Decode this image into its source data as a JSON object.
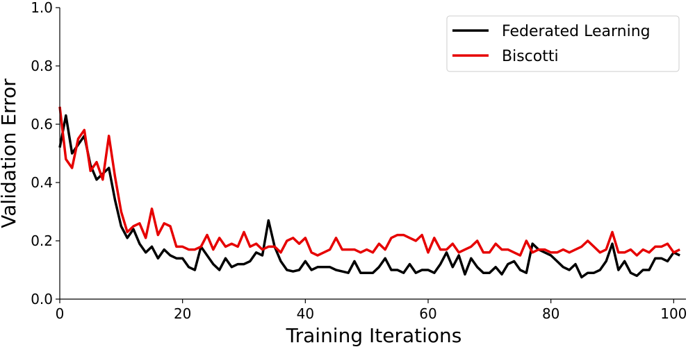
{
  "chart_data": {
    "type": "line",
    "title": "",
    "xlabel": "Training Iterations",
    "ylabel": "Validation Error",
    "xlim": [
      0,
      102
    ],
    "ylim": [
      0.0,
      1.0
    ],
    "xticks": [
      0,
      20,
      40,
      60,
      80,
      100
    ],
    "yticks": [
      0.0,
      0.2,
      0.4,
      0.6,
      0.8,
      1.0
    ],
    "xtick_labels": [
      "0",
      "20",
      "40",
      "60",
      "80",
      "100"
    ],
    "ytick_labels": [
      "0.0",
      "0.2",
      "0.4",
      "0.6",
      "0.8",
      "1.0"
    ],
    "grid": false,
    "legend_position": "top-right",
    "x": [
      0,
      1,
      2,
      3,
      4,
      5,
      6,
      7,
      8,
      9,
      10,
      11,
      12,
      13,
      14,
      15,
      16,
      17,
      18,
      19,
      20,
      21,
      22,
      23,
      24,
      25,
      26,
      27,
      28,
      29,
      30,
      31,
      32,
      33,
      34,
      35,
      36,
      37,
      38,
      39,
      40,
      41,
      42,
      43,
      44,
      45,
      46,
      47,
      48,
      49,
      50,
      51,
      52,
      53,
      54,
      55,
      56,
      57,
      58,
      59,
      60,
      61,
      62,
      63,
      64,
      65,
      66,
      67,
      68,
      69,
      70,
      71,
      72,
      73,
      74,
      75,
      76,
      77,
      78,
      79,
      80,
      81,
      82,
      83,
      84,
      85,
      86,
      87,
      88,
      89,
      90,
      91,
      92,
      93,
      94,
      95,
      96,
      97,
      98,
      99,
      100,
      101
    ],
    "series": [
      {
        "name": "Federated Learning",
        "color": "#000000",
        "values": [
          0.52,
          0.63,
          0.5,
          0.53,
          0.56,
          0.46,
          0.41,
          0.43,
          0.45,
          0.34,
          0.25,
          0.21,
          0.24,
          0.19,
          0.16,
          0.18,
          0.14,
          0.17,
          0.15,
          0.14,
          0.14,
          0.11,
          0.1,
          0.18,
          0.15,
          0.12,
          0.1,
          0.14,
          0.11,
          0.12,
          0.12,
          0.13,
          0.16,
          0.15,
          0.27,
          0.18,
          0.13,
          0.1,
          0.095,
          0.1,
          0.13,
          0.1,
          0.11,
          0.11,
          0.11,
          0.1,
          0.095,
          0.09,
          0.13,
          0.09,
          0.09,
          0.09,
          0.11,
          0.14,
          0.1,
          0.1,
          0.09,
          0.12,
          0.09,
          0.1,
          0.1,
          0.09,
          0.12,
          0.16,
          0.11,
          0.15,
          0.085,
          0.14,
          0.11,
          0.09,
          0.09,
          0.11,
          0.085,
          0.12,
          0.13,
          0.1,
          0.09,
          0.19,
          0.17,
          0.16,
          0.15,
          0.13,
          0.11,
          0.1,
          0.12,
          0.075,
          0.09,
          0.09,
          0.1,
          0.13,
          0.19,
          0.1,
          0.13,
          0.09,
          0.08,
          0.1,
          0.1,
          0.14,
          0.14,
          0.13,
          0.16,
          0.15
        ]
      },
      {
        "name": "Biscotti",
        "color": "#e60000",
        "values": [
          0.66,
          0.48,
          0.45,
          0.55,
          0.58,
          0.44,
          0.47,
          0.41,
          0.56,
          0.42,
          0.3,
          0.23,
          0.25,
          0.26,
          0.21,
          0.31,
          0.22,
          0.26,
          0.25,
          0.18,
          0.18,
          0.17,
          0.17,
          0.18,
          0.22,
          0.17,
          0.21,
          0.18,
          0.19,
          0.18,
          0.23,
          0.18,
          0.19,
          0.17,
          0.18,
          0.18,
          0.16,
          0.2,
          0.21,
          0.19,
          0.21,
          0.16,
          0.15,
          0.16,
          0.17,
          0.21,
          0.17,
          0.17,
          0.17,
          0.16,
          0.17,
          0.16,
          0.19,
          0.17,
          0.21,
          0.22,
          0.22,
          0.21,
          0.2,
          0.22,
          0.16,
          0.21,
          0.17,
          0.17,
          0.19,
          0.16,
          0.17,
          0.18,
          0.2,
          0.16,
          0.16,
          0.19,
          0.17,
          0.17,
          0.16,
          0.15,
          0.2,
          0.16,
          0.17,
          0.17,
          0.16,
          0.16,
          0.17,
          0.16,
          0.17,
          0.18,
          0.2,
          0.18,
          0.16,
          0.17,
          0.23,
          0.16,
          0.16,
          0.17,
          0.15,
          0.17,
          0.16,
          0.18,
          0.18,
          0.19,
          0.16,
          0.17
        ]
      }
    ]
  }
}
